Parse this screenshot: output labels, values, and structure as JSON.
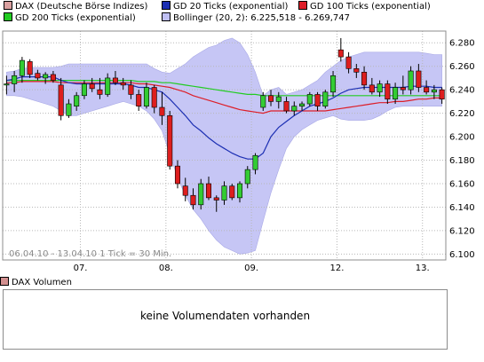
{
  "legend": {
    "items": [
      {
        "label": "DAX (Deutsche Börse Indizes)",
        "color": "#d9a0a0"
      },
      {
        "label": "GD 20 Ticks (exponential)",
        "color": "#1c2fb3"
      },
      {
        "label": "GD 100 Ticks (exponential)",
        "color": "#dd1e28"
      },
      {
        "label": "GD 200 Ticks (exponential)",
        "color": "#22cc22"
      },
      {
        "label": "Bollinger (20, 2): 6.225,518 - 6.269,747",
        "color": "#c0c0f4"
      }
    ]
  },
  "chart_data": {
    "type": "candlestick",
    "date_range_label": "06.04.10 - 13.04.10",
    "tick_label": "1 Tick = 30 Min.",
    "ylim": [
      6.095,
      6.29
    ],
    "yticks": [
      "6.100",
      "6.120",
      "6.140",
      "6.160",
      "6.180",
      "6.200",
      "6.220",
      "6.240",
      "6.260",
      "6.280"
    ],
    "ytick_values": [
      6.1,
      6.12,
      6.14,
      6.16,
      6.18,
      6.2,
      6.22,
      6.24,
      6.26,
      6.28
    ],
    "xticks": [
      {
        "label": "07.",
        "index": 10
      },
      {
        "label": "08.",
        "index": 21
      },
      {
        "label": "09.",
        "index": 32
      },
      {
        "label": "12.",
        "index": 43
      },
      {
        "label": "13.",
        "index": 54
      }
    ],
    "n_ticks": 57,
    "candles": [
      {
        "o": 6.244,
        "h": 6.252,
        "l": 6.236,
        "c": 6.245
      },
      {
        "o": 6.245,
        "h": 6.256,
        "l": 6.238,
        "c": 6.252
      },
      {
        "o": 6.252,
        "h": 6.268,
        "l": 6.246,
        "c": 6.265
      },
      {
        "o": 6.264,
        "h": 6.266,
        "l": 6.25,
        "c": 6.253
      },
      {
        "o": 6.254,
        "h": 6.257,
        "l": 6.248,
        "c": 6.25
      },
      {
        "o": 6.25,
        "h": 6.255,
        "l": 6.245,
        "c": 6.253
      },
      {
        "o": 6.253,
        "h": 6.256,
        "l": 6.246,
        "c": 6.248
      },
      {
        "o": 6.244,
        "h": 6.25,
        "l": 6.214,
        "c": 6.218
      },
      {
        "o": 6.218,
        "h": 6.232,
        "l": 6.216,
        "c": 6.228
      },
      {
        "o": 6.226,
        "h": 6.238,
        "l": 6.222,
        "c": 6.235
      },
      {
        "o": 6.235,
        "h": 6.248,
        "l": 6.232,
        "c": 6.245
      },
      {
        "o": 6.245,
        "h": 6.25,
        "l": 6.238,
        "c": 6.241
      },
      {
        "o": 6.24,
        "h": 6.25,
        "l": 6.232,
        "c": 6.236
      },
      {
        "o": 6.236,
        "h": 6.254,
        "l": 6.234,
        "c": 6.25
      },
      {
        "o": 6.25,
        "h": 6.256,
        "l": 6.244,
        "c": 6.246
      },
      {
        "o": 6.246,
        "h": 6.25,
        "l": 6.24,
        "c": 6.244
      },
      {
        "o": 6.244,
        "h": 6.248,
        "l": 6.232,
        "c": 6.236
      },
      {
        "o": 6.236,
        "h": 6.24,
        "l": 6.222,
        "c": 6.226
      },
      {
        "o": 6.226,
        "h": 6.246,
        "l": 6.224,
        "c": 6.242
      },
      {
        "o": 6.242,
        "h": 6.244,
        "l": 6.22,
        "c": 6.225
      },
      {
        "o": 6.225,
        "h": 6.238,
        "l": 6.21,
        "c": 6.218
      },
      {
        "o": 6.218,
        "h": 6.222,
        "l": 6.172,
        "c": 6.175
      },
      {
        "o": 6.175,
        "h": 6.18,
        "l": 6.156,
        "c": 6.16
      },
      {
        "o": 6.158,
        "h": 6.165,
        "l": 6.145,
        "c": 6.15
      },
      {
        "o": 6.15,
        "h": 6.156,
        "l": 6.138,
        "c": 6.142
      },
      {
        "o": 6.142,
        "h": 6.164,
        "l": 6.138,
        "c": 6.16
      },
      {
        "o": 6.16,
        "h": 6.166,
        "l": 6.146,
        "c": 6.148
      },
      {
        "o": 6.148,
        "h": 6.15,
        "l": 6.136,
        "c": 6.146
      },
      {
        "o": 6.146,
        "h": 6.162,
        "l": 6.142,
        "c": 6.158
      },
      {
        "o": 6.158,
        "h": 6.16,
        "l": 6.146,
        "c": 6.148
      },
      {
        "o": 6.148,
        "h": 6.162,
        "l": 6.144,
        "c": 6.16
      },
      {
        "o": 6.16,
        "h": 6.175,
        "l": 6.156,
        "c": 6.172
      },
      {
        "o": 6.172,
        "h": 6.186,
        "l": 6.168,
        "c": 6.184
      },
      {
        "o": 6.225,
        "h": 6.238,
        "l": 6.222,
        "c": 6.235
      },
      {
        "o": 6.235,
        "h": 6.24,
        "l": 6.226,
        "c": 6.23
      },
      {
        "o": 6.23,
        "h": 6.238,
        "l": 6.224,
        "c": 6.234
      },
      {
        "o": 6.23,
        "h": 6.234,
        "l": 6.22,
        "c": 6.222
      },
      {
        "o": 6.222,
        "h": 6.23,
        "l": 6.218,
        "c": 6.226
      },
      {
        "o": 6.226,
        "h": 6.23,
        "l": 6.222,
        "c": 6.228
      },
      {
        "o": 6.228,
        "h": 6.238,
        "l": 6.226,
        "c": 6.236
      },
      {
        "o": 6.236,
        "h": 6.238,
        "l": 6.222,
        "c": 6.226
      },
      {
        "o": 6.226,
        "h": 6.24,
        "l": 6.224,
        "c": 6.238
      },
      {
        "o": 6.238,
        "h": 6.256,
        "l": 6.234,
        "c": 6.252
      },
      {
        "o": 6.274,
        "h": 6.284,
        "l": 6.264,
        "c": 6.268
      },
      {
        "o": 6.268,
        "h": 6.272,
        "l": 6.254,
        "c": 6.258
      },
      {
        "o": 6.258,
        "h": 6.262,
        "l": 6.25,
        "c": 6.255
      },
      {
        "o": 6.255,
        "h": 6.26,
        "l": 6.24,
        "c": 6.244
      },
      {
        "o": 6.244,
        "h": 6.25,
        "l": 6.236,
        "c": 6.238
      },
      {
        "o": 6.238,
        "h": 6.248,
        "l": 6.234,
        "c": 6.245
      },
      {
        "o": 6.245,
        "h": 6.248,
        "l": 6.228,
        "c": 6.232
      },
      {
        "o": 6.232,
        "h": 6.246,
        "l": 6.228,
        "c": 6.242
      },
      {
        "o": 6.242,
        "h": 6.252,
        "l": 6.236,
        "c": 6.24
      },
      {
        "o": 6.24,
        "h": 6.26,
        "l": 6.236,
        "c": 6.256
      },
      {
        "o": 6.256,
        "h": 6.262,
        "l": 6.238,
        "c": 6.242
      },
      {
        "o": 6.242,
        "h": 6.248,
        "l": 6.236,
        "c": 6.238
      },
      {
        "o": 6.238,
        "h": 6.244,
        "l": 6.232,
        "c": 6.24
      },
      {
        "o": 6.24,
        "h": 6.242,
        "l": 6.228,
        "c": 6.232
      }
    ],
    "series": [
      {
        "name": "GD 20 Ticks (exponential)",
        "color": "#1c2fb3",
        "values": [
          6.248,
          6.249,
          6.251,
          6.251,
          6.251,
          6.251,
          6.251,
          6.248,
          6.246,
          6.245,
          6.245,
          6.245,
          6.245,
          6.245,
          6.245,
          6.245,
          6.244,
          6.242,
          6.242,
          6.24,
          6.238,
          6.232,
          6.225,
          6.218,
          6.21,
          6.205,
          6.199,
          6.194,
          6.19,
          6.186,
          6.183,
          6.181,
          6.181,
          6.186,
          6.2,
          6.208,
          6.213,
          6.218,
          6.222,
          6.226,
          6.228,
          6.23,
          6.233,
          6.237,
          6.24,
          6.241,
          6.242,
          6.242,
          6.242,
          6.242,
          6.242,
          6.242,
          6.243,
          6.243,
          6.243,
          6.242,
          6.242
        ]
      },
      {
        "name": "GD 100 Ticks (exponential)",
        "color": "#dd1e28",
        "values": [
          6.246,
          6.246,
          6.247,
          6.247,
          6.247,
          6.247,
          6.247,
          6.246,
          6.246,
          6.246,
          6.246,
          6.246,
          6.246,
          6.246,
          6.246,
          6.246,
          6.246,
          6.245,
          6.245,
          6.244,
          6.243,
          6.242,
          6.24,
          6.238,
          6.235,
          6.233,
          6.231,
          6.229,
          6.227,
          6.225,
          6.223,
          6.222,
          6.221,
          6.22,
          6.222,
          6.222,
          6.222,
          6.222,
          6.222,
          6.222,
          6.222,
          6.222,
          6.223,
          6.224,
          6.225,
          6.226,
          6.227,
          6.228,
          6.229,
          6.229,
          6.23,
          6.23,
          6.231,
          6.232,
          6.232,
          6.233,
          6.233
        ]
      },
      {
        "name": "GD 200 Ticks (exponential)",
        "color": "#22cc22",
        "values": [
          6.248,
          6.248,
          6.248,
          6.248,
          6.248,
          6.248,
          6.248,
          6.248,
          6.248,
          6.248,
          6.248,
          6.248,
          6.248,
          6.248,
          6.248,
          6.248,
          6.248,
          6.247,
          6.247,
          6.247,
          6.246,
          6.246,
          6.245,
          6.244,
          6.243,
          6.242,
          6.241,
          6.24,
          6.239,
          6.238,
          6.237,
          6.236,
          6.236,
          6.235,
          6.235,
          6.235,
          6.235,
          6.235,
          6.235,
          6.235,
          6.235,
          6.235,
          6.235,
          6.235,
          6.235,
          6.235,
          6.235,
          6.235,
          6.235,
          6.235,
          6.235,
          6.235,
          6.235,
          6.235,
          6.235,
          6.235,
          6.235
        ]
      }
    ],
    "bollinger": {
      "name": "Bollinger (20, 2)",
      "upper": [
        6.255,
        6.256,
        6.258,
        6.259,
        6.259,
        6.259,
        6.259,
        6.26,
        6.262,
        6.262,
        6.262,
        6.262,
        6.262,
        6.262,
        6.262,
        6.262,
        6.262,
        6.262,
        6.262,
        6.258,
        6.255,
        6.254,
        6.258,
        6.262,
        6.268,
        6.272,
        6.276,
        6.278,
        6.282,
        6.284,
        6.28,
        6.27,
        6.255,
        6.235,
        6.24,
        6.242,
        6.236,
        6.238,
        6.24,
        6.244,
        6.248,
        6.255,
        6.26,
        6.265,
        6.268,
        6.27,
        6.272,
        6.272,
        6.272,
        6.272,
        6.272,
        6.272,
        6.272,
        6.272,
        6.271,
        6.27,
        6.27
      ],
      "lower": [
        6.235,
        6.235,
        6.234,
        6.232,
        6.23,
        6.228,
        6.226,
        6.222,
        6.218,
        6.218,
        6.22,
        6.222,
        6.224,
        6.226,
        6.228,
        6.23,
        6.228,
        6.226,
        6.222,
        6.215,
        6.205,
        6.185,
        6.165,
        6.15,
        6.138,
        6.13,
        6.12,
        6.112,
        6.106,
        6.103,
        6.1,
        6.101,
        6.103,
        6.128,
        6.152,
        6.172,
        6.19,
        6.2,
        6.206,
        6.21,
        6.214,
        6.216,
        6.218,
        6.215,
        6.214,
        6.214,
        6.214,
        6.215,
        6.218,
        6.222,
        6.225,
        6.226,
        6.226,
        6.226,
        6.226,
        6.226,
        6.226
      ]
    }
  },
  "volume": {
    "legend_label": "DAX Volumen",
    "legend_color": "#d28f8f",
    "message": "keine Volumendaten vorhanden"
  }
}
